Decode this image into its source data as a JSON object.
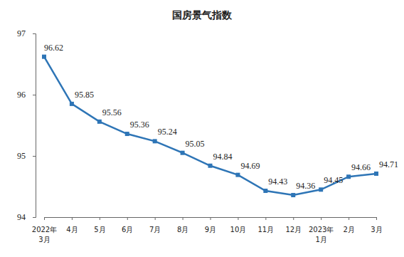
{
  "chart_data": {
    "type": "line",
    "title": "国房景气指数",
    "categories": [
      "2022年\n3月",
      "4月",
      "5月",
      "6月",
      "7月",
      "8月",
      "9月",
      "10月",
      "11月",
      "12月",
      "2023年\n1月",
      "2月",
      "3月"
    ],
    "values": [
      96.62,
      95.85,
      95.56,
      95.36,
      95.24,
      95.05,
      94.84,
      94.69,
      94.43,
      94.36,
      94.45,
      94.66,
      94.71
    ],
    "color": "#2e75b6",
    "marker": "square",
    "line_style": "solid",
    "ylim": [
      94,
      97
    ],
    "yticks": [
      94,
      95,
      96,
      97
    ],
    "grid": false,
    "data_labels": true
  }
}
